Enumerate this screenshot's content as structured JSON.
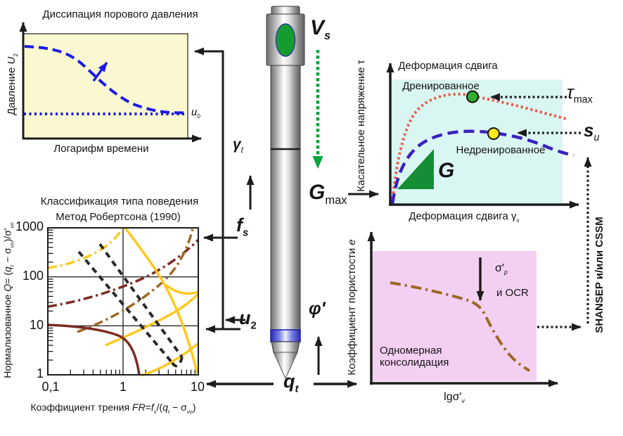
{
  "palette": {
    "dissipation_bg": "#FAF8D0",
    "shear_bg": "#D9F6F2",
    "consolidation_bg": "#F3CFF2",
    "pore_pressure_blue": "#1A1AE8",
    "drained_red": "#EE5544",
    "undrained_indigo": "#3A22BF",
    "modulus_green": "#158D35",
    "marker_green": "#2FAE2F",
    "marker_yellow": "#FFE81A",
    "boundary_yellow": "#FFC81E",
    "boundary_maroon": "#7B2B24",
    "boundary_brown": "#9C6823",
    "vs_green": "#00A33C",
    "arrow_black": "#1C1C1C"
  },
  "dissipation": {
    "title": "Диссипация порового давления",
    "y_label": [
      {
        "t": "Давление "
      },
      {
        "t": "U",
        "i": true
      },
      {
        "t": "2",
        "s": true
      }
    ],
    "x_label": "Логарифм времени",
    "u0": [
      {
        "t": "u",
        "i": true
      },
      {
        "t": "0",
        "s": true
      }
    ]
  },
  "classification": {
    "title": "Классификация типа поведения",
    "subtitle": "Метод Робертсона (1990)",
    "y_label": [
      {
        "t": "Нормализованное "
      },
      {
        "t": "Q",
        "i": true
      },
      {
        "t": "= ("
      },
      {
        "t": "q",
        "i": true
      },
      {
        "t": "t",
        "i": true,
        "s": true
      },
      {
        "t": " − σ"
      },
      {
        "t": "vo",
        "i": true,
        "s": true
      },
      {
        "t": ")/σ′"
      },
      {
        "t": "vo",
        "i": true,
        "s": true
      }
    ],
    "x_label": [
      {
        "t": "Коэффициент трения "
      },
      {
        "t": "FR",
        "i": true
      },
      {
        "t": "="
      },
      {
        "t": "f",
        "i": true
      },
      {
        "t": "s",
        "i": true,
        "s": true
      },
      {
        "t": "/("
      },
      {
        "t": "q",
        "i": true
      },
      {
        "t": "t",
        "i": true,
        "s": true
      },
      {
        "t": " − σ"
      },
      {
        "t": "vo",
        "i": true,
        "s": true
      },
      {
        "t": ")"
      }
    ],
    "y_ticks": [
      "1000",
      "100",
      "10",
      "1"
    ],
    "x_ticks": [
      "0,1",
      "1",
      "10"
    ]
  },
  "probe": {
    "vs": [
      {
        "t": "V",
        "i": true,
        "b": true
      },
      {
        "t": "s",
        "i": true,
        "s": true,
        "b": true
      }
    ],
    "gamma_t": [
      {
        "t": "γ",
        "i": true,
        "b": true
      },
      {
        "t": "t",
        "i": true,
        "s": true
      }
    ],
    "f_s": [
      {
        "t": "f",
        "i": true,
        "b": true
      },
      {
        "t": "s",
        "i": true,
        "s": true,
        "b": true
      }
    ],
    "u_2": [
      {
        "t": "u",
        "i": true,
        "b": true
      },
      {
        "t": "2",
        "s": true,
        "b": true
      }
    ],
    "g_max": [
      {
        "t": "G",
        "i": true,
        "b": true
      },
      {
        "t": "max",
        "s": true
      }
    ],
    "phi": [
      {
        "t": "φ′",
        "i": true,
        "b": true
      }
    ],
    "q_t": [
      {
        "t": "q",
        "i": true,
        "b": true
      },
      {
        "t": "t",
        "i": true,
        "s": true,
        "b": true
      }
    ]
  },
  "shear": {
    "title": "Деформация сдвига",
    "y_label": "Касательное напряжение τ",
    "x_label": [
      {
        "t": "Деформация сдвига γ"
      },
      {
        "t": "s",
        "i": true,
        "s": true
      }
    ],
    "drained_label": "Дренированное",
    "undrained_label": "Недренированное",
    "tau_max": [
      {
        "t": "τ",
        "i": true
      },
      {
        "t": "max",
        "s": true
      }
    ],
    "s_u": [
      {
        "t": "s",
        "i": true,
        "b": true
      },
      {
        "t": "u",
        "i": true,
        "s": true
      }
    ],
    "g": [
      {
        "t": "G",
        "i": true,
        "b": true
      }
    ]
  },
  "consolidation": {
    "y_label": [
      {
        "t": "Коэффициент пористости "
      },
      {
        "t": "e",
        "i": true
      }
    ],
    "x_label": [
      {
        "t": "lgσ′"
      },
      {
        "t": "v",
        "i": true,
        "s": true
      }
    ],
    "sigma_p": [
      {
        "t": "σ′"
      },
      {
        "t": "p",
        "i": true,
        "s": true
      }
    ],
    "ocr": "и OCR",
    "caption1": "Одномерная",
    "caption2": "консолидация"
  },
  "side_note": "SHANSEP и/или CSSM",
  "chart_data": [
    {
      "id": "dissipation",
      "type": "line",
      "title": "Диссипация порового давления",
      "xlabel": "Логарифм времени",
      "ylabel": "Давление U2",
      "axes": "qualitative (no numeric scale shown)",
      "series": [
        {
          "name": "u2",
          "style": "blue long-dash",
          "points_norm": [
            [
              0,
              0.92
            ],
            [
              0.18,
              0.89
            ],
            [
              0.33,
              0.72
            ],
            [
              0.5,
              0.48
            ],
            [
              0.68,
              0.28
            ],
            [
              0.85,
              0.17
            ],
            [
              1,
              0.15
            ]
          ]
        },
        {
          "name": "u0",
          "style": "blue dotted horizontal",
          "points_norm": [
            [
              0,
              0.13
            ],
            [
              1,
              0.13
            ]
          ]
        }
      ],
      "annotations": [
        "u0"
      ]
    },
    {
      "id": "robertson_sbt",
      "type": "line",
      "title": "Классификация типа поведения",
      "subtitle": "Метод Робертсона (1990)",
      "xlabel": "Коэффициент трения FR=fs/(qt − σvo)",
      "ylabel": "Нормализованное Q= (qt − σvo)/σ′vo",
      "xscale": "log",
      "yscale": "log",
      "xlim": [
        0.1,
        10
      ],
      "ylim": [
        1,
        1000
      ],
      "gridlines": {
        "x": [
          1
        ],
        "y": [
          10,
          100
        ]
      },
      "series": [
        {
          "name": "boundary-1",
          "style": "maroon solid",
          "points": [
            [
              0.1,
              10
            ],
            [
              0.45,
              8.6
            ],
            [
              0.87,
              6.3
            ],
            [
              1.3,
              2.5
            ],
            [
              1.64,
              1
            ]
          ]
        },
        {
          "name": "boundary-2",
          "style": "yellow solid",
          "points": [
            [
              1.07,
              1000
            ],
            [
              3.5,
              76
            ],
            [
              5.8,
              16
            ],
            [
              9.6,
              1.1
            ]
          ]
        },
        {
          "name": "boundary-3",
          "style": "yellow solid",
          "points": [
            [
              3.7,
              68
            ],
            [
              6.5,
              39
            ],
            [
              10,
              50
            ]
          ]
        },
        {
          "name": "boundary-4",
          "style": "yellow solid",
          "points": [
            [
              0.58,
              4
            ],
            [
              2.4,
              12
            ],
            [
              4.9,
              19
            ],
            [
              10,
              45
            ]
          ]
        },
        {
          "name": "boundary-5",
          "style": "yellow solid",
          "points": [
            [
              1.75,
              1
            ],
            [
              4.4,
              2.4
            ],
            [
              9.7,
              4.3
            ]
          ]
        },
        {
          "name": "boundary-6",
          "style": "yellow dash-dot",
          "points": [
            [
              0.1,
              150
            ],
            [
              0.56,
              390
            ],
            [
              0.96,
              970
            ]
          ]
        },
        {
          "name": "boundary-7",
          "style": "maroon dash-dot",
          "points": [
            [
              0.1,
              26
            ],
            [
              1.55,
              84
            ],
            [
              10,
              580
            ]
          ]
        },
        {
          "name": "boundary-8",
          "style": "brown dash-dot",
          "points": [
            [
              0.25,
              7.3
            ],
            [
              3.1,
              67
            ],
            [
              8.3,
              970
            ]
          ]
        },
        {
          "name": "trend-1",
          "style": "black dashed",
          "points": [
            [
              0.26,
              325
            ],
            [
              4.5,
              1.8
            ]
          ]
        },
        {
          "name": "trend-2",
          "style": "black dashed",
          "points": [
            [
              0.49,
              470
            ],
            [
              6.1,
              2.3
            ]
          ]
        }
      ]
    },
    {
      "id": "shear_stress_strain",
      "type": "line",
      "title": "Деформация сдвига",
      "xlabel": "Деформация сдвига γs",
      "ylabel": "Касательное напряжение τ",
      "axes": "qualitative (no numeric scale shown)",
      "series": [
        {
          "name": "Дренированное",
          "style": "red dotted",
          "points_norm": [
            [
              0,
              0
            ],
            [
              0.04,
              0.3
            ],
            [
              0.12,
              0.65
            ],
            [
              0.25,
              0.88
            ],
            [
              0.42,
              0.99
            ],
            [
              0.6,
              0.95
            ],
            [
              0.8,
              0.85
            ],
            [
              1,
              0.78
            ]
          ],
          "peak_marker": {
            "color": "green",
            "label": "τmax",
            "at_norm": [
              0.45,
              0.99
            ]
          }
        },
        {
          "name": "Недренированное",
          "style": "indigo dashed",
          "points_norm": [
            [
              0,
              0
            ],
            [
              0.05,
              0.25
            ],
            [
              0.17,
              0.48
            ],
            [
              0.35,
              0.6
            ],
            [
              0.56,
              0.65
            ],
            [
              0.75,
              0.58
            ],
            [
              0.9,
              0.48
            ],
            [
              1,
              0.44
            ]
          ],
          "peak_marker": {
            "color": "yellow",
            "label": "su",
            "at_norm": [
              0.56,
              0.65
            ]
          }
        }
      ],
      "annotations": [
        "τmax",
        "su",
        "G"
      ]
    },
    {
      "id": "oedometer_consolidation",
      "type": "line",
      "xlabel": "lgσ′v",
      "ylabel": "Коэффициент пористости e",
      "label_inside": "Одномерная консолидация",
      "axes": "qualitative (no numeric scale shown)",
      "series": [
        {
          "name": "e–lgσ′v",
          "style": "brown dash-dot",
          "points_norm": [
            [
              0.1,
              0.75
            ],
            [
              0.35,
              0.71
            ],
            [
              0.55,
              0.66
            ],
            [
              0.64,
              0.62
            ],
            [
              0.69,
              0.5
            ],
            [
              0.78,
              0.3
            ],
            [
              0.87,
              0.16
            ],
            [
              0.95,
              0.08
            ]
          ]
        }
      ],
      "annotations": [
        "σ′p",
        "и OCR"
      ]
    }
  ]
}
